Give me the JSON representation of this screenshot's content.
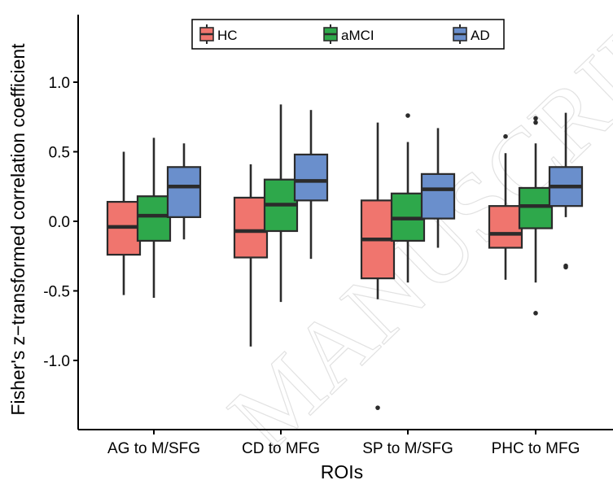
{
  "watermark": "MANUSCRIPT",
  "chart_data": {
    "type": "boxplot",
    "title": "",
    "xlabel": "ROIs",
    "ylabel": "Fisher's z−transformed correlation coefficient",
    "ylim": [
      -1.45,
      1.5
    ],
    "yticks": [
      1.0,
      0.5,
      0.0,
      -0.5,
      -1.0
    ],
    "ytick_labels": [
      "1.0",
      "0.5",
      "0.0",
      "-0.5",
      "-1.0"
    ],
    "grid": false,
    "legend_position": "top",
    "categories": [
      "AG to M/SFG",
      "CD to MFG",
      "SP to M/SFG",
      "PHC to MFG"
    ],
    "series": [
      {
        "name": "HC",
        "color": "#F0756E",
        "boxes": [
          {
            "whisker_low": -0.53,
            "q1": -0.24,
            "median": -0.04,
            "q3": 0.14,
            "whisker_high": 0.5,
            "outliers": []
          },
          {
            "whisker_low": -0.9,
            "q1": -0.26,
            "median": -0.07,
            "q3": 0.17,
            "whisker_high": 0.41,
            "outliers": []
          },
          {
            "whisker_low": -0.56,
            "q1": -0.41,
            "median": -0.13,
            "q3": 0.15,
            "whisker_high": 0.71,
            "outliers": [
              -1.34
            ]
          },
          {
            "whisker_low": -0.42,
            "q1": -0.19,
            "median": -0.09,
            "q3": 0.11,
            "whisker_high": 0.49,
            "outliers": [
              0.61
            ]
          }
        ]
      },
      {
        "name": "aMCI",
        "color": "#2EA84B",
        "boxes": [
          {
            "whisker_low": -0.55,
            "q1": -0.14,
            "median": 0.04,
            "q3": 0.18,
            "whisker_high": 0.6,
            "outliers": []
          },
          {
            "whisker_low": -0.58,
            "q1": -0.07,
            "median": 0.12,
            "q3": 0.3,
            "whisker_high": 0.84,
            "outliers": []
          },
          {
            "whisker_low": -0.44,
            "q1": -0.14,
            "median": 0.02,
            "q3": 0.2,
            "whisker_high": 0.57,
            "outliers": [
              0.76
            ]
          },
          {
            "whisker_low": -0.44,
            "q1": -0.05,
            "median": 0.11,
            "q3": 0.24,
            "whisker_high": 0.56,
            "outliers": [
              0.71,
              0.74,
              -0.66
            ]
          }
        ]
      },
      {
        "name": "AD",
        "color": "#6A8FCC",
        "boxes": [
          {
            "whisker_low": -0.13,
            "q1": 0.03,
            "median": 0.25,
            "q3": 0.39,
            "whisker_high": 0.56,
            "outliers": []
          },
          {
            "whisker_low": -0.27,
            "q1": 0.15,
            "median": 0.29,
            "q3": 0.48,
            "whisker_high": 0.8,
            "outliers": []
          },
          {
            "whisker_low": -0.19,
            "q1": 0.02,
            "median": 0.23,
            "q3": 0.34,
            "whisker_high": 0.67,
            "outliers": []
          },
          {
            "whisker_low": 0.03,
            "q1": 0.11,
            "median": 0.25,
            "q3": 0.39,
            "whisker_high": 0.78,
            "outliers": [
              -0.32,
              -0.33
            ]
          }
        ]
      }
    ]
  }
}
